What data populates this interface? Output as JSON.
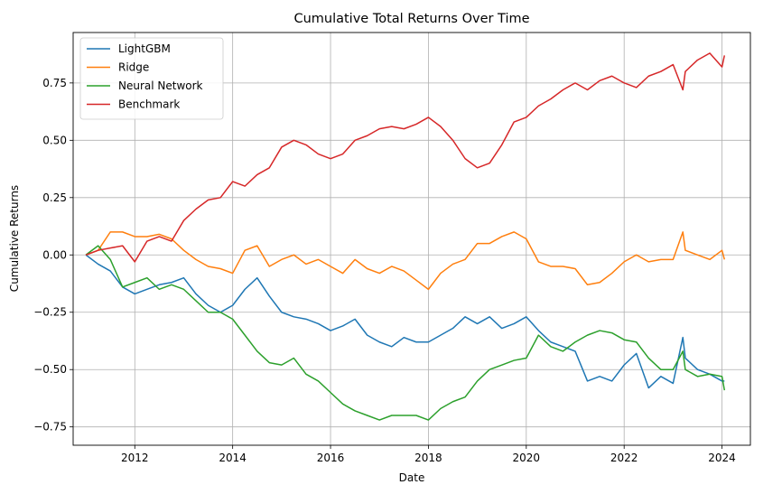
{
  "chart_data": {
    "type": "line",
    "title": "Cumulative Total Returns Over Time",
    "xlabel": "Date",
    "ylabel": "Cumulative Returns",
    "xlim": [
      2010.74,
      2024.58
    ],
    "ylim": [
      -0.83,
      0.97
    ],
    "x_ticks": [
      2012,
      2014,
      2016,
      2018,
      2020,
      2022,
      2024
    ],
    "y_ticks": [
      -0.75,
      -0.5,
      -0.25,
      0.0,
      0.25,
      0.5,
      0.75
    ],
    "y_tick_labels": [
      "−0.75",
      "−0.50",
      "−0.25",
      "0.00",
      "0.25",
      "0.50",
      "0.75"
    ],
    "grid": true,
    "legend_position": "top-left",
    "series": [
      {
        "name": "LightGBM",
        "color": "#1f77b4",
        "x": [
          2011.0,
          2011.25,
          2011.5,
          2011.75,
          2012.0,
          2012.25,
          2012.5,
          2012.75,
          2013.0,
          2013.25,
          2013.5,
          2013.75,
          2014.0,
          2014.25,
          2014.5,
          2014.75,
          2015.0,
          2015.25,
          2015.5,
          2015.75,
          2016.0,
          2016.25,
          2016.5,
          2016.75,
          2017.0,
          2017.25,
          2017.5,
          2017.75,
          2018.0,
          2018.25,
          2018.5,
          2018.75,
          2019.0,
          2019.25,
          2019.5,
          2019.75,
          2020.0,
          2020.25,
          2020.5,
          2020.75,
          2021.0,
          2021.25,
          2021.5,
          2021.75,
          2022.0,
          2022.25,
          2022.5,
          2022.75,
          2023.0,
          2023.2,
          2023.25,
          2023.5,
          2023.75,
          2024.0,
          2024.05
        ],
        "values": [
          0.0,
          -0.04,
          -0.07,
          -0.14,
          -0.17,
          -0.15,
          -0.13,
          -0.12,
          -0.1,
          -0.17,
          -0.22,
          -0.25,
          -0.22,
          -0.15,
          -0.1,
          -0.18,
          -0.25,
          -0.27,
          -0.28,
          -0.3,
          -0.33,
          -0.31,
          -0.28,
          -0.35,
          -0.38,
          -0.4,
          -0.36,
          -0.38,
          -0.38,
          -0.35,
          -0.32,
          -0.27,
          -0.3,
          -0.27,
          -0.32,
          -0.3,
          -0.27,
          -0.33,
          -0.38,
          -0.4,
          -0.42,
          -0.55,
          -0.53,
          -0.55,
          -0.48,
          -0.43,
          -0.58,
          -0.53,
          -0.56,
          -0.36,
          -0.45,
          -0.5,
          -0.52,
          -0.55,
          -0.55
        ]
      },
      {
        "name": "Ridge",
        "color": "#ff7f0e",
        "x": [
          2011.0,
          2011.25,
          2011.5,
          2011.75,
          2012.0,
          2012.25,
          2012.5,
          2012.75,
          2013.0,
          2013.25,
          2013.5,
          2013.75,
          2014.0,
          2014.25,
          2014.5,
          2014.75,
          2015.0,
          2015.25,
          2015.5,
          2015.75,
          2016.0,
          2016.25,
          2016.5,
          2016.75,
          2017.0,
          2017.25,
          2017.5,
          2017.75,
          2018.0,
          2018.25,
          2018.5,
          2018.75,
          2019.0,
          2019.25,
          2019.5,
          2019.75,
          2020.0,
          2020.25,
          2020.5,
          2020.75,
          2021.0,
          2021.25,
          2021.5,
          2021.75,
          2022.0,
          2022.25,
          2022.5,
          2022.75,
          2023.0,
          2023.2,
          2023.25,
          2023.5,
          2023.75,
          2024.0,
          2024.05
        ],
        "values": [
          0.0,
          0.02,
          0.1,
          0.1,
          0.08,
          0.08,
          0.09,
          0.07,
          0.02,
          -0.02,
          -0.05,
          -0.06,
          -0.08,
          0.02,
          0.04,
          -0.05,
          -0.02,
          0.0,
          -0.04,
          -0.02,
          -0.05,
          -0.08,
          -0.02,
          -0.06,
          -0.08,
          -0.05,
          -0.07,
          -0.11,
          -0.15,
          -0.08,
          -0.04,
          -0.02,
          0.05,
          0.05,
          0.08,
          0.1,
          0.07,
          -0.03,
          -0.05,
          -0.05,
          -0.06,
          -0.13,
          -0.12,
          -0.08,
          -0.03,
          0.0,
          -0.03,
          -0.02,
          -0.02,
          0.1,
          0.02,
          0.0,
          -0.02,
          0.02,
          -0.02
        ]
      },
      {
        "name": "Neural Network",
        "color": "#2ca02c",
        "x": [
          2011.0,
          2011.25,
          2011.5,
          2011.75,
          2012.0,
          2012.25,
          2012.5,
          2012.75,
          2013.0,
          2013.25,
          2013.5,
          2013.75,
          2014.0,
          2014.25,
          2014.5,
          2014.75,
          2015.0,
          2015.25,
          2015.5,
          2015.75,
          2016.0,
          2016.25,
          2016.5,
          2016.75,
          2017.0,
          2017.25,
          2017.5,
          2017.75,
          2018.0,
          2018.25,
          2018.5,
          2018.75,
          2019.0,
          2019.25,
          2019.5,
          2019.75,
          2020.0,
          2020.25,
          2020.5,
          2020.75,
          2021.0,
          2021.25,
          2021.5,
          2021.75,
          2022.0,
          2022.25,
          2022.5,
          2022.75,
          2023.0,
          2023.2,
          2023.25,
          2023.5,
          2023.75,
          2024.0,
          2024.05
        ],
        "values": [
          0.0,
          0.04,
          -0.02,
          -0.14,
          -0.12,
          -0.1,
          -0.15,
          -0.13,
          -0.15,
          -0.2,
          -0.25,
          -0.25,
          -0.28,
          -0.35,
          -0.42,
          -0.47,
          -0.48,
          -0.45,
          -0.52,
          -0.55,
          -0.6,
          -0.65,
          -0.68,
          -0.7,
          -0.72,
          -0.7,
          -0.7,
          -0.7,
          -0.72,
          -0.67,
          -0.64,
          -0.62,
          -0.55,
          -0.5,
          -0.48,
          -0.46,
          -0.45,
          -0.35,
          -0.4,
          -0.42,
          -0.38,
          -0.35,
          -0.33,
          -0.34,
          -0.37,
          -0.38,
          -0.45,
          -0.5,
          -0.5,
          -0.42,
          -0.5,
          -0.53,
          -0.52,
          -0.53,
          -0.59
        ]
      },
      {
        "name": "Benchmark",
        "color": "#d62728",
        "x": [
          2011.0,
          2011.25,
          2011.5,
          2011.75,
          2012.0,
          2012.25,
          2012.5,
          2012.75,
          2013.0,
          2013.25,
          2013.5,
          2013.75,
          2014.0,
          2014.25,
          2014.5,
          2014.75,
          2015.0,
          2015.25,
          2015.5,
          2015.75,
          2016.0,
          2016.25,
          2016.5,
          2016.75,
          2017.0,
          2017.25,
          2017.5,
          2017.75,
          2018.0,
          2018.25,
          2018.5,
          2018.75,
          2019.0,
          2019.25,
          2019.5,
          2019.75,
          2020.0,
          2020.25,
          2020.5,
          2020.75,
          2021.0,
          2021.25,
          2021.5,
          2021.75,
          2022.0,
          2022.25,
          2022.5,
          2022.75,
          2023.0,
          2023.2,
          2023.25,
          2023.5,
          2023.75,
          2024.0,
          2024.05
        ],
        "values": [
          0.0,
          0.02,
          0.03,
          0.04,
          -0.03,
          0.06,
          0.08,
          0.06,
          0.15,
          0.2,
          0.24,
          0.25,
          0.32,
          0.3,
          0.35,
          0.38,
          0.47,
          0.5,
          0.48,
          0.44,
          0.42,
          0.44,
          0.5,
          0.52,
          0.55,
          0.56,
          0.55,
          0.57,
          0.6,
          0.56,
          0.5,
          0.42,
          0.38,
          0.4,
          0.48,
          0.58,
          0.6,
          0.65,
          0.68,
          0.72,
          0.75,
          0.72,
          0.76,
          0.78,
          0.75,
          0.73,
          0.78,
          0.8,
          0.83,
          0.72,
          0.8,
          0.85,
          0.88,
          0.82,
          0.87
        ]
      }
    ]
  }
}
